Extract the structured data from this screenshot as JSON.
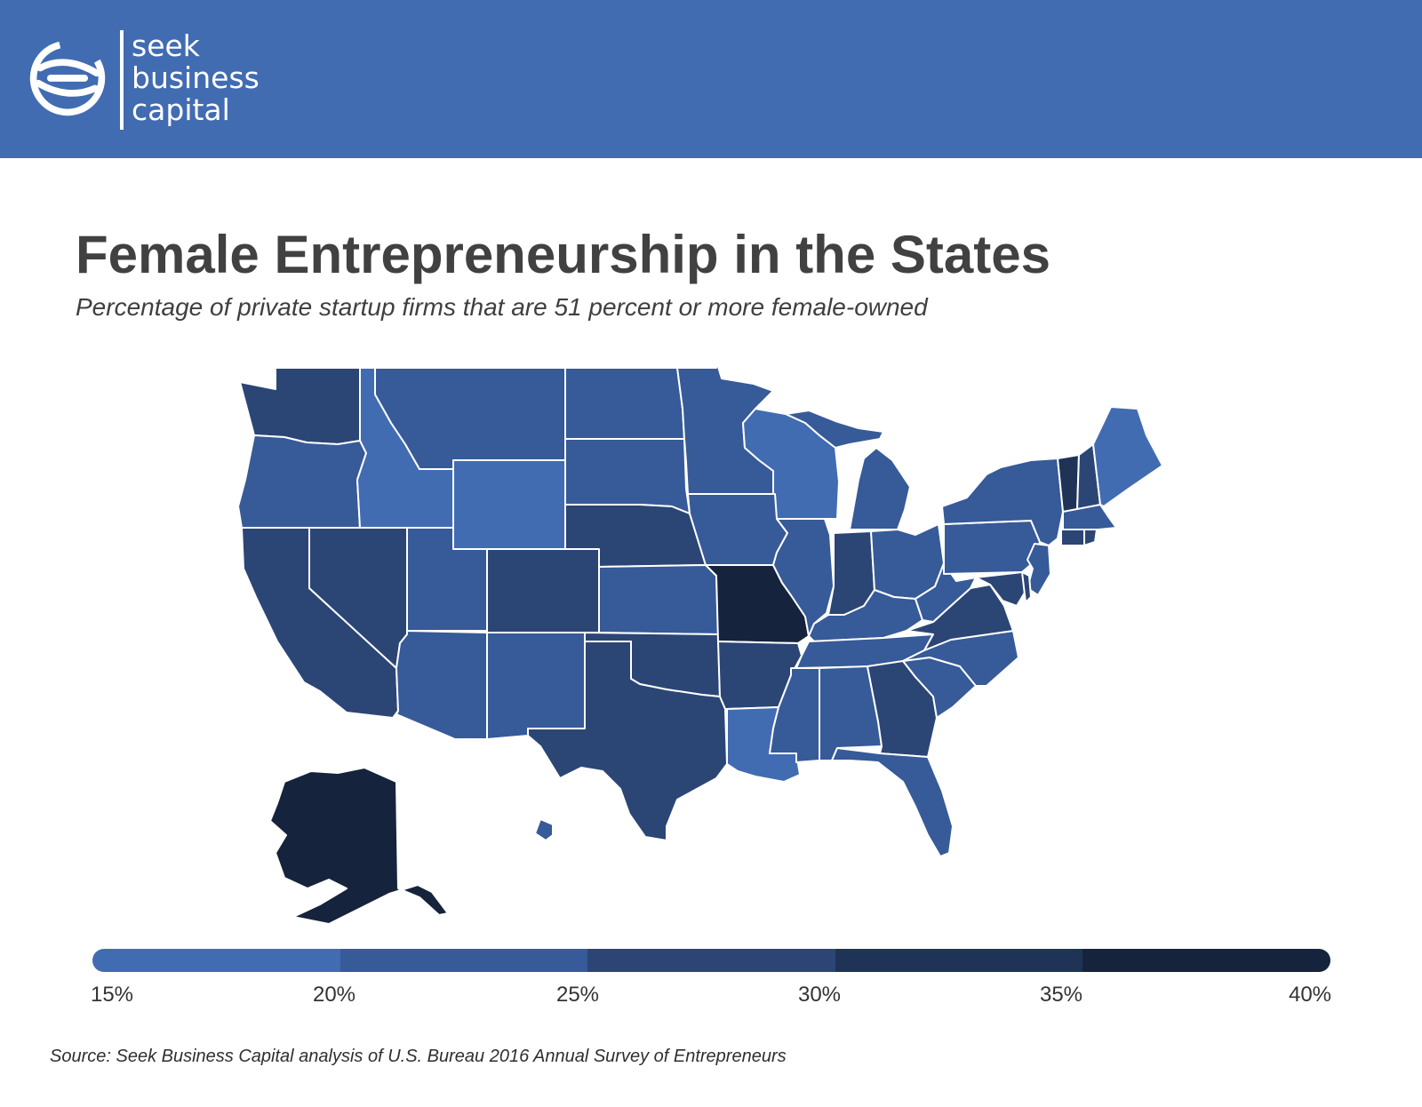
{
  "header": {
    "brand_lines": [
      "seek",
      "business",
      "capital"
    ],
    "background_color": "#416cb2"
  },
  "title": "Female Entrepreneurship in the States",
  "subtitle": "Percentage of private startup firms that are 51 percent or more female-owned",
  "legend": {
    "stops": [
      "15%",
      "20%",
      "25%",
      "30%",
      "35%",
      "40%"
    ],
    "colors": [
      "#416cb2",
      "#375a98",
      "#2b4675",
      "#1f3357",
      "#16233c"
    ]
  },
  "map": {
    "fill_scale": {
      "#416cb2": "15-20%",
      "#375a98": "20-25%",
      "#2b4675": "25-30%",
      "#1f3357": "30-35%",
      "#16233c": "35-40%"
    },
    "stroke_color": "#ffffff"
  },
  "source": "Source: Seek Business Capital analysis of U.S. Bureau  2016 Annual Survey of Entrepreneurs"
}
